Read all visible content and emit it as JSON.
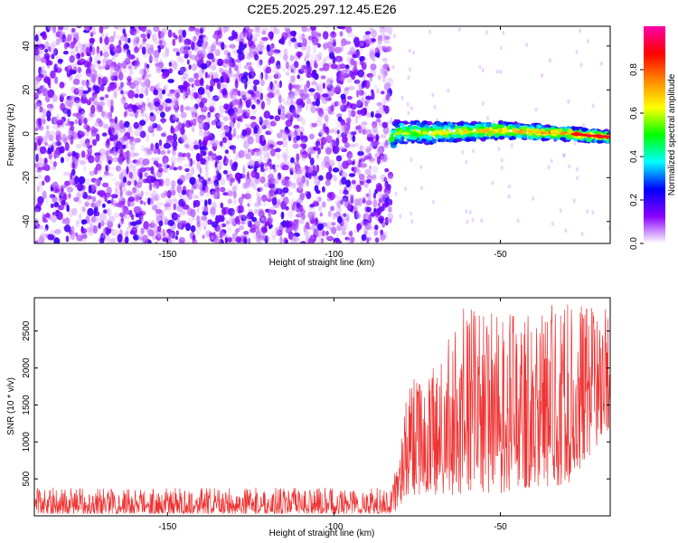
{
  "title": "C2E5.2025.297.12.45.E26",
  "chart_data": [
    {
      "type": "heatmap",
      "xlabel": "Height of straight line (km)",
      "ylabel": "Frequency (Hz)",
      "xlim": [
        -190,
        -17
      ],
      "ylim": [
        -50,
        49
      ],
      "xticks": [
        -150,
        -100,
        -50
      ],
      "yticks": [
        -40,
        -20,
        0,
        20,
        40
      ],
      "noise_region_x": [
        -190,
        -83
      ],
      "signal_region_x": [
        -83,
        -17
      ],
      "signal_freq_hz": 0,
      "signal_centerline": [
        {
          "x": -82,
          "y": 0.8
        },
        {
          "x": -70,
          "y": 0.4
        },
        {
          "x": -60,
          "y": 1.0
        },
        {
          "x": -50,
          "y": 1.5
        },
        {
          "x": -40,
          "y": 0.8
        },
        {
          "x": -30,
          "y": 0.0
        },
        {
          "x": -17,
          "y": -1.5
        }
      ],
      "colorbar": {
        "label": "Normalized spectral amplitude",
        "ticks": [
          "0.0",
          "0.2",
          "0.4",
          "0.6",
          "0.8"
        ],
        "range": [
          0,
          1
        ],
        "colors": [
          "#ffffff",
          "#8800ff",
          "#0000ff",
          "#00ffff",
          "#00ff00",
          "#ffff00",
          "#ff8800",
          "#ff0000",
          "#ff00aa"
        ]
      },
      "grid": false
    },
    {
      "type": "line",
      "xlabel": "Height of straight line (km)",
      "ylabel": "SNR (10 * v/v)",
      "xlim": [
        -190,
        -17
      ],
      "ylim": [
        0,
        2950
      ],
      "xticks": [
        -150,
        -100,
        -50
      ],
      "yticks": [
        500,
        1000,
        1500,
        2000,
        2500
      ],
      "color": "#ee3333",
      "profile": [
        {
          "x": -190,
          "lo": 30,
          "hi": 380
        },
        {
          "x": -83,
          "lo": 30,
          "hi": 380
        },
        {
          "x": -80,
          "lo": 100,
          "hi": 900
        },
        {
          "x": -78,
          "lo": 300,
          "hi": 1800
        },
        {
          "x": -70,
          "lo": 250,
          "hi": 2000
        },
        {
          "x": -60,
          "lo": 300,
          "hi": 2900
        },
        {
          "x": -50,
          "lo": 300,
          "hi": 2700
        },
        {
          "x": -40,
          "lo": 400,
          "hi": 2800
        },
        {
          "x": -30,
          "lo": 400,
          "hi": 2900
        },
        {
          "x": -17,
          "lo": 1200,
          "hi": 2800
        }
      ]
    }
  ]
}
